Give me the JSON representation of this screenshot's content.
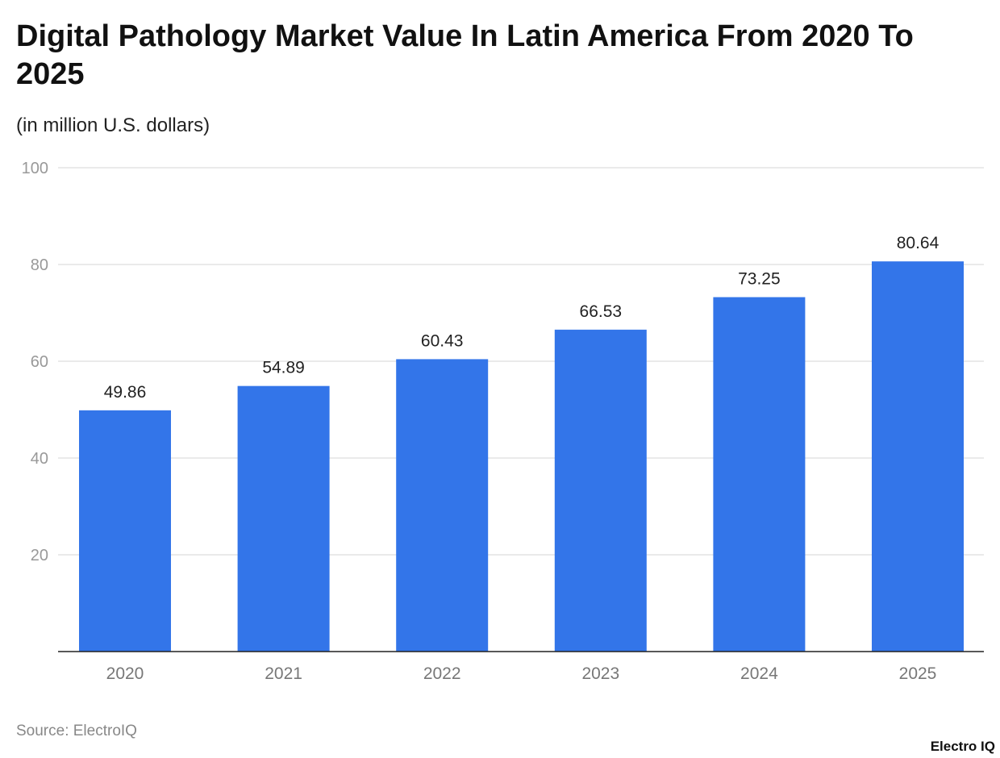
{
  "chart_data": {
    "type": "bar",
    "title": "Digital Pathology Market Value In Latin America From 2020 To 2025",
    "subtitle": "(in million U.S. dollars)",
    "categories": [
      "2020",
      "2021",
      "2022",
      "2023",
      "2024",
      "2025"
    ],
    "values": [
      49.86,
      54.89,
      60.43,
      66.53,
      73.25,
      80.64
    ],
    "data_labels": [
      "49.86",
      "54.89",
      "60.43",
      "66.53",
      "73.25",
      "80.64"
    ],
    "ylim": [
      0,
      100
    ],
    "yticks": [
      20,
      40,
      60,
      80,
      100
    ],
    "grid": true,
    "bar_color": "#3375E9",
    "source": "Source: ElectroIQ",
    "logo": "Electro IQ"
  }
}
